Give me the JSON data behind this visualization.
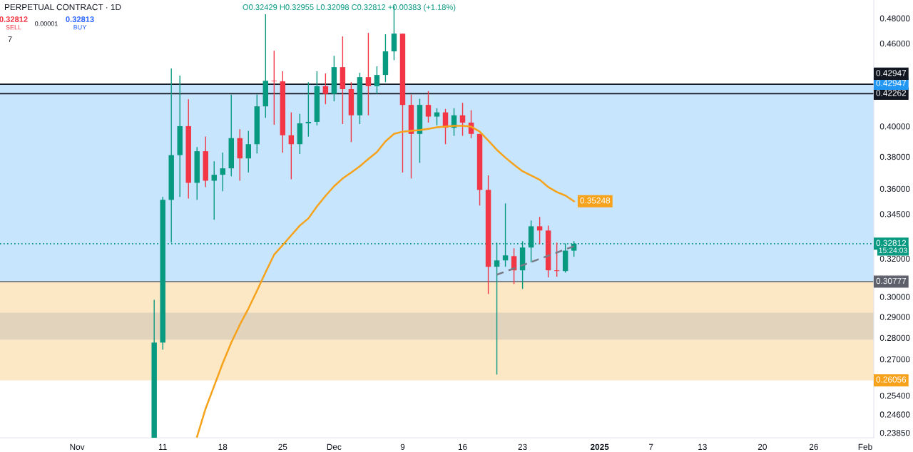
{
  "chart_data": {
    "type": "candlestick",
    "title": "PERPETUAL CONTRACT · 1D",
    "subtitle": "O0.32429 H0.32955 L0.32098 C0.32812 +0.00383 (+1.18%)",
    "x": [
      "2024-11-10",
      "2024-11-11",
      "2024-11-12",
      "2024-11-13",
      "2024-11-14",
      "2024-11-15",
      "2024-11-16",
      "2024-11-17",
      "2024-11-18",
      "2024-11-19",
      "2024-11-20",
      "2024-11-21",
      "2024-11-22",
      "2024-11-23",
      "2024-11-24",
      "2024-11-25",
      "2024-11-26",
      "2024-11-27",
      "2024-11-28",
      "2024-11-29",
      "2024-11-30",
      "2024-12-01",
      "2024-12-02",
      "2024-12-03",
      "2024-12-04",
      "2024-12-05",
      "2024-12-06",
      "2024-12-07",
      "2024-12-08",
      "2024-12-09",
      "2024-12-10",
      "2024-12-11",
      "2024-12-12",
      "2024-12-13",
      "2024-12-14",
      "2024-12-15",
      "2024-12-16",
      "2024-12-17",
      "2024-12-18",
      "2024-12-19",
      "2024-12-20",
      "2024-12-21",
      "2024-12-22",
      "2024-12-23",
      "2024-12-24",
      "2024-12-25",
      "2024-12-26",
      "2024-12-27",
      "2024-12-28",
      "2024-12-29"
    ],
    "ohlc": [
      [
        0.2365,
        0.2985,
        0.2365,
        0.2777
      ],
      [
        0.2777,
        0.355,
        0.2744,
        0.3533
      ],
      [
        0.3533,
        0.441,
        0.3287,
        0.381
      ],
      [
        0.381,
        0.4357,
        0.355,
        0.4001
      ],
      [
        0.4001,
        0.4186,
        0.3541,
        0.3636
      ],
      [
        0.3636,
        0.3862,
        0.3533,
        0.3835
      ],
      [
        0.3835,
        0.3931,
        0.361,
        0.3649
      ],
      [
        0.3649,
        0.377,
        0.3416,
        0.3686
      ],
      [
        0.3686,
        0.3826,
        0.3585,
        0.3726
      ],
      [
        0.3726,
        0.422,
        0.3677,
        0.3921
      ],
      [
        0.3921,
        0.398,
        0.3649,
        0.3789
      ],
      [
        0.3789,
        0.397,
        0.37,
        0.3881
      ],
      [
        0.3881,
        0.422,
        0.3821,
        0.4137
      ],
      [
        0.4137,
        0.4833,
        0.4058,
        0.4319
      ],
      [
        0.4319,
        0.4544,
        0.401,
        0.4315
      ],
      [
        0.4315,
        0.4389,
        0.3826,
        0.394
      ],
      [
        0.394,
        0.4095,
        0.3658,
        0.3881
      ],
      [
        0.3881,
        0.4085,
        0.3817,
        0.402
      ],
      [
        0.402,
        0.4309,
        0.3931,
        0.403
      ],
      [
        0.403,
        0.4389,
        0.4006,
        0.428
      ],
      [
        0.428,
        0.4373,
        0.4152,
        0.4225
      ],
      [
        0.4225,
        0.4505,
        0.4172,
        0.442
      ],
      [
        0.442,
        0.4655,
        0.4015,
        0.4259
      ],
      [
        0.4259,
        0.4309,
        0.3895,
        0.4075
      ],
      [
        0.4075,
        0.4378,
        0.4015,
        0.4346
      ],
      [
        0.4346,
        0.4683,
        0.4075,
        0.428
      ],
      [
        0.428,
        0.4426,
        0.4225,
        0.4362
      ],
      [
        0.4362,
        0.4672,
        0.4309,
        0.4539
      ],
      [
        0.4539,
        0.4902,
        0.4472,
        0.4677
      ],
      [
        0.4677,
        0.4677,
        0.37,
        0.4147
      ],
      [
        0.4147,
        0.422,
        0.3663,
        0.3949
      ],
      [
        0.3949,
        0.419,
        0.3761,
        0.4147
      ],
      [
        0.4147,
        0.4245,
        0.4025,
        0.4066
      ],
      [
        0.4066,
        0.4124,
        0.4006,
        0.4095
      ],
      [
        0.4095,
        0.4119,
        0.3881,
        0.399
      ],
      [
        0.399,
        0.4124,
        0.3936,
        0.4075
      ],
      [
        0.4075,
        0.4162,
        0.3936,
        0.4025
      ],
      [
        0.4025,
        0.411,
        0.3921,
        0.3949
      ],
      [
        0.3949,
        0.3949,
        0.3499,
        0.3593
      ],
      [
        0.3593,
        0.3682,
        0.3014,
        0.3156
      ],
      [
        0.3156,
        0.3287,
        0.2631,
        0.319
      ],
      [
        0.319,
        0.3512,
        0.3156,
        0.3217
      ],
      [
        0.3213,
        0.3256,
        0.3065,
        0.3137
      ],
      [
        0.3137,
        0.3295,
        0.304,
        0.326
      ],
      [
        0.326,
        0.3412,
        0.3179,
        0.3379
      ],
      [
        0.3379,
        0.3433,
        0.3279,
        0.3355
      ],
      [
        0.3355,
        0.3383,
        0.31,
        0.3137
      ],
      [
        0.3137,
        0.3287,
        0.3103,
        0.3133
      ],
      [
        0.3133,
        0.3283,
        0.3125,
        0.3243
      ],
      [
        0.32429,
        0.32955,
        0.32098,
        0.32812
      ]
    ],
    "colors": [
      "#089981",
      "#089981",
      "#089981",
      "#089981",
      "#f23645",
      "#089981",
      "#f23645",
      "#089981",
      "#089981",
      "#089981",
      "#f23645",
      "#089981",
      "#089981",
      "#089981",
      "#f23645",
      "#f23645",
      "#f23645",
      "#089981",
      "#089981",
      "#089981",
      "#f23645",
      "#089981",
      "#f23645",
      "#f23645",
      "#089981",
      "#f23645",
      "#089981",
      "#089981",
      "#089981",
      "#f23645",
      "#f23645",
      "#089981",
      "#f23645",
      "#089981",
      "#f23645",
      "#089981",
      "#f23645",
      "#f23645",
      "#f23645",
      "#f23645",
      "#089981",
      "#089981",
      "#f23645",
      "#089981",
      "#089981",
      "#f23645",
      "#f23645",
      "#f23645",
      "#089981",
      "#089981"
    ],
    "series": [
      {
        "type": "line",
        "color": "#f7a21b",
        "x": [
          "2024-11-15",
          "2024-11-16",
          "2024-11-17",
          "2024-11-18",
          "2024-11-19",
          "2024-11-20",
          "2024-11-21",
          "2024-11-22",
          "2024-11-23",
          "2024-11-24",
          "2024-11-25",
          "2024-11-26",
          "2024-11-27",
          "2024-11-28",
          "2024-11-29",
          "2024-11-30",
          "2024-12-01",
          "2024-12-02",
          "2024-12-03",
          "2024-12-04",
          "2024-12-05",
          "2024-12-06",
          "2024-12-07",
          "2024-12-08",
          "2024-12-09",
          "2024-12-10",
          "2024-12-11",
          "2024-12-12",
          "2024-12-13",
          "2024-12-14",
          "2024-12-15",
          "2024-12-16",
          "2024-12-17",
          "2024-12-18",
          "2024-12-19",
          "2024-12-20",
          "2024-12-21",
          "2024-12-22",
          "2024-12-23",
          "2024-12-24",
          "2024-12-25",
          "2024-12-26",
          "2024-12-27",
          "2024-12-28",
          "2024-12-29"
        ],
        "values": [
          0.2369,
          0.2484,
          0.2581,
          0.2682,
          0.2777,
          0.2862,
          0.2941,
          0.3031,
          0.3126,
          0.3221,
          0.3273,
          0.3328,
          0.3383,
          0.3424,
          0.3494,
          0.3557,
          0.3615,
          0.3663,
          0.37,
          0.3739,
          0.3785,
          0.383,
          0.39,
          0.3949,
          0.3964,
          0.3969,
          0.3974,
          0.3983,
          0.3993,
          0.3998,
          0.4003,
          0.4003,
          0.3998,
          0.3964,
          0.3905,
          0.3844,
          0.3794,
          0.3749,
          0.3708,
          0.3682,
          0.3655,
          0.361,
          0.358,
          0.3559,
          0.35248
        ],
        "value_labels": [
          null,
          null,
          null,
          null,
          null,
          null,
          null,
          null,
          null,
          null,
          null,
          null,
          null,
          null,
          null,
          null,
          null,
          null,
          null,
          null,
          null,
          null,
          null,
          null,
          null,
          null,
          null,
          null,
          null,
          null,
          null,
          null,
          null,
          null,
          null,
          null,
          null,
          null,
          null,
          null,
          null,
          null,
          null,
          null,
          "0.35248"
        ]
      },
      {
        "type": "line",
        "color": "#787b86",
        "line_style": "dashed",
        "x": [
          "2024-12-20",
          "2024-12-29"
        ],
        "values": [
          0.3114,
          0.3267
        ]
      }
    ],
    "ref_lines": [
      {
        "axis": "y",
        "value": 0.42947,
        "label": "0.42947",
        "color": "#131722",
        "line_style": "solid"
      },
      {
        "axis": "y",
        "value": 0.42262,
        "label": "0.42262",
        "color": "#131722",
        "line_style": "solid"
      },
      {
        "axis": "y",
        "value": 0.32812,
        "label": "0.32812",
        "color": "#089981",
        "line_style": "dotted"
      },
      {
        "axis": "y",
        "value": 0.30777,
        "label": "0.30777",
        "color": "#5d606b",
        "line_style": "solid"
      }
    ],
    "bands": [
      {
        "axis": "y",
        "from": 0.42947,
        "to": 0.30777,
        "label": "0.42947",
        "color": "#2196f3"
      },
      {
        "axis": "y",
        "from": 0.26056,
        "to": 0.30777,
        "label": "0.26056",
        "color": "#f7a21b"
      },
      {
        "axis": "y",
        "from": 0.279,
        "to": 0.2921,
        "color": "#9598a1"
      }
    ],
    "annotations": [
      "0.32812",
      "SELL",
      "0.00001",
      "0.32813",
      "BUY",
      "7",
      "15:24:03"
    ],
    "log": true,
    "xlim": [
      "2024-10-23",
      "2025-02-02"
    ],
    "xticks": [
      {
        "value": "2024-11-01",
        "label": "Nov"
      },
      {
        "value": "2024-11-11",
        "label": "11"
      },
      {
        "value": "2024-11-18",
        "label": "18"
      },
      {
        "value": "2024-11-25",
        "label": "25"
      },
      {
        "value": "2024-12-01",
        "label": "Dec"
      },
      {
        "value": "2024-12-09",
        "label": "9"
      },
      {
        "value": "2024-12-16",
        "label": "16"
      },
      {
        "value": "2024-12-23",
        "label": "23"
      },
      {
        "value": "2025-01-01",
        "label": "2025"
      },
      {
        "value": "2025-01-07",
        "label": "7"
      },
      {
        "value": "2025-01-13",
        "label": "13"
      },
      {
        "value": "2025-01-20",
        "label": "20"
      },
      {
        "value": "2025-01-26",
        "label": "26"
      },
      {
        "value": "2025-02-01",
        "label": "Feb"
      }
    ],
    "ylim": [
      0.2365,
      0.495
    ],
    "yticks": [
      {
        "value": 0.48,
        "label": "0.48000"
      },
      {
        "value": 0.46,
        "label": "0.46000"
      },
      {
        "value": 0.4,
        "label": "0.40000"
      },
      {
        "value": 0.38,
        "label": "0.38000"
      },
      {
        "value": 0.36,
        "label": "0.36000"
      },
      {
        "value": 0.345,
        "label": "0.34500"
      },
      {
        "value": 0.32,
        "label": "0.32000"
      },
      {
        "value": 0.3,
        "label": "0.30000"
      },
      {
        "value": 0.29,
        "label": "0.29000"
      },
      {
        "value": 0.28,
        "label": "0.28000"
      },
      {
        "value": 0.27,
        "label": "0.27000"
      },
      {
        "value": 0.254,
        "label": "0.25400"
      },
      {
        "value": 0.246,
        "label": "0.24600"
      },
      {
        "value": 0.2385,
        "label": "0.23850"
      }
    ],
    "grid": false
  }
}
